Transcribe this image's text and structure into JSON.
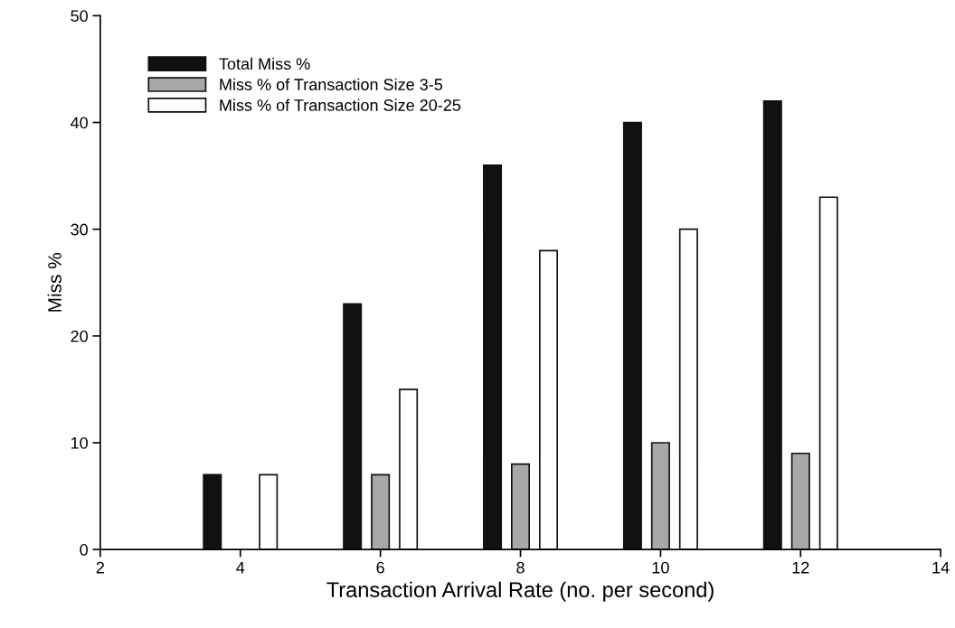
{
  "chart_data": {
    "type": "bar",
    "xlabel": "Transaction Arrival Rate (no. per second)",
    "ylabel": "Miss %",
    "xlim": [
      2,
      14
    ],
    "xticks": [
      2,
      4,
      6,
      8,
      10,
      12,
      14
    ],
    "ylim": [
      0,
      50
    ],
    "yticks": [
      0,
      10,
      20,
      30,
      40,
      50
    ],
    "grid": false,
    "legend": "top left",
    "series": [
      {
        "name": "Total Miss %",
        "color": "#111111",
        "x": [
          3.6,
          5.6,
          7.6,
          9.6,
          11.6
        ],
        "values": [
          7,
          23,
          36,
          40,
          42
        ]
      },
      {
        "name": "Miss % of Transaction Size 3-5",
        "color": "#a8a8a8",
        "x": [
          6,
          8,
          10,
          12
        ],
        "values": [
          7,
          8,
          10,
          9
        ]
      },
      {
        "name": "Miss % of Transaction Size 20-25",
        "color": "#ffffff",
        "x": [
          4.4,
          6.4,
          8.4,
          10.4,
          12.4
        ],
        "values": [
          7,
          15,
          28,
          30,
          33
        ]
      }
    ]
  }
}
